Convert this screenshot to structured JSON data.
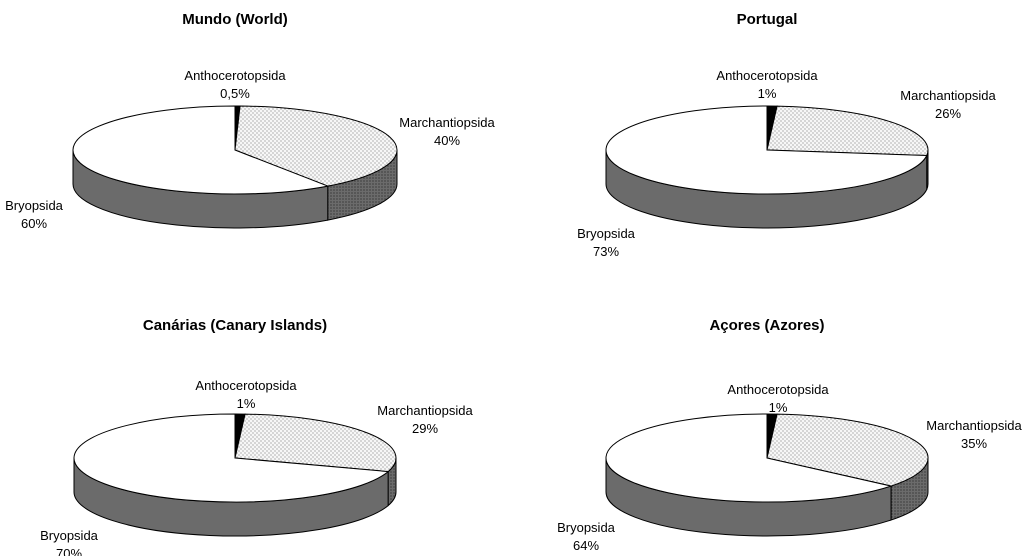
{
  "chart_data": [
    {
      "type": "pie",
      "title": "Mundo (World)",
      "slices": [
        {
          "name": "Anthocerotopsida",
          "value": 0.5,
          "label": "0,5%"
        },
        {
          "name": "Marchantiopsida",
          "value": 40,
          "label": "40%"
        },
        {
          "name": "Bryopsida",
          "value": 60,
          "label": "60%"
        }
      ]
    },
    {
      "type": "pie",
      "title": "Portugal",
      "slices": [
        {
          "name": "Anthocerotopsida",
          "value": 1,
          "label": "1%"
        },
        {
          "name": "Marchantiopsida",
          "value": 26,
          "label": "26%"
        },
        {
          "name": "Bryopsida",
          "value": 73,
          "label": "73%"
        }
      ]
    },
    {
      "type": "pie",
      "title": "Canárias (Canary Islands)",
      "slices": [
        {
          "name": "Anthocerotopsida",
          "value": 1,
          "label": "1%"
        },
        {
          "name": "Marchantiopsida",
          "value": 29,
          "label": "29%"
        },
        {
          "name": "Bryopsida",
          "value": 70,
          "label": "70%"
        }
      ]
    },
    {
      "type": "pie",
      "title": "Açores (Azores)",
      "slices": [
        {
          "name": "Anthocerotopsida",
          "value": 1,
          "label": "1%"
        },
        {
          "name": "Marchantiopsida",
          "value": 35,
          "label": "35%"
        },
        {
          "name": "Bryopsida",
          "value": 64,
          "label": "64%"
        }
      ]
    }
  ],
  "style": {
    "anthocerotopsida_color": "#000000",
    "marchantiopsida_color": "#f4f4f4",
    "marchantiopsida_pattern": "dotted",
    "bryopsida_top_color": "#ffffff",
    "side_color": "#6b6b6b",
    "outline_color": "#000000"
  }
}
